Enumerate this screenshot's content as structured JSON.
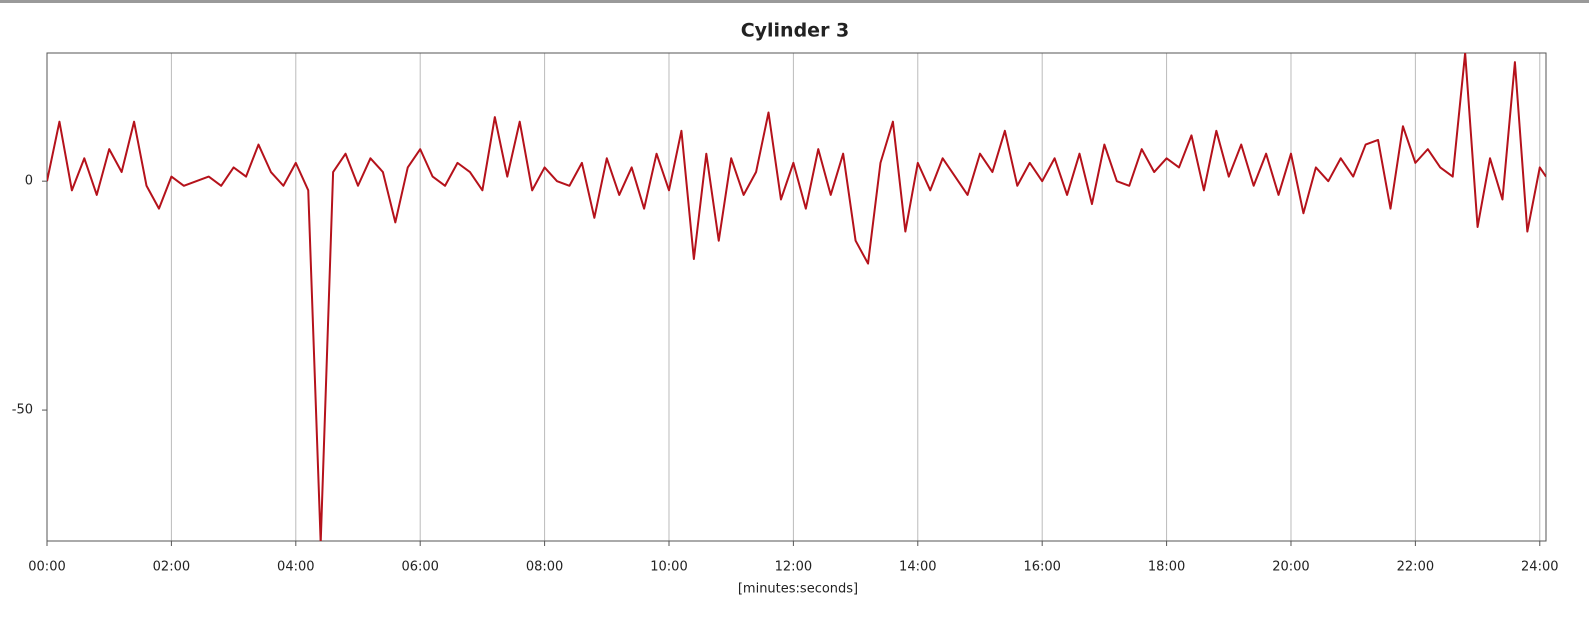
{
  "chart_data": {
    "type": "line",
    "title": "Cylinder 3",
    "x_label": "[minutes:seconds]",
    "x": [
      0,
      12,
      24,
      36,
      48,
      60,
      72,
      84,
      96,
      108,
      120,
      132,
      144,
      156,
      168,
      180,
      192,
      204,
      216,
      228,
      240,
      252,
      264,
      276,
      288,
      300,
      312,
      324,
      336,
      348,
      360,
      372,
      384,
      396,
      408,
      420,
      432,
      444,
      456,
      468,
      480,
      492,
      504,
      516,
      528,
      540,
      552,
      564,
      576,
      588,
      600,
      612,
      624,
      636,
      648,
      660,
      672,
      684,
      696,
      708,
      720,
      732,
      744,
      756,
      768,
      780,
      792,
      804,
      816,
      828,
      840,
      852,
      864,
      876,
      888,
      900,
      912,
      924,
      936,
      948,
      960,
      972,
      984,
      996,
      1008,
      1020,
      1032,
      1044,
      1056,
      1068,
      1080,
      1092,
      1104,
      1116,
      1128,
      1140,
      1152,
      1164,
      1176,
      1188,
      1200,
      1212,
      1224,
      1236,
      1248,
      1260,
      1272,
      1284,
      1296,
      1308,
      1320,
      1332,
      1344,
      1356,
      1368,
      1380,
      1392,
      1404,
      1416,
      1428,
      1440,
      1446
    ],
    "values": [
      0,
      13,
      -2,
      5,
      -3,
      7,
      2,
      13,
      -1,
      -6,
      1,
      -1,
      0,
      1,
      -1,
      3,
      1,
      8,
      2,
      -1,
      4,
      -2,
      -79,
      2,
      6,
      -1,
      5,
      2,
      -9,
      3,
      7,
      1,
      -1,
      4,
      2,
      -2,
      14,
      1,
      13,
      -2,
      3,
      0,
      -1,
      4,
      -8,
      5,
      -3,
      3,
      -6,
      6,
      -2,
      11,
      -17,
      6,
      -13,
      5,
      -3,
      2,
      15,
      -4,
      4,
      -6,
      7,
      -3,
      6,
      -13,
      -18,
      4,
      13,
      -11,
      4,
      -2,
      5,
      1,
      -3,
      6,
      2,
      11,
      -1,
      4,
      0,
      5,
      -3,
      6,
      -5,
      8,
      0,
      -1,
      7,
      2,
      5,
      3,
      10,
      -2,
      11,
      1,
      8,
      -1,
      6,
      -3,
      6,
      -7,
      3,
      0,
      5,
      1,
      8,
      9,
      -6,
      12,
      4,
      7,
      3,
      1,
      28,
      -10,
      5,
      -4,
      26,
      -11,
      3,
      1
    ],
    "color": "#b5121b",
    "xlim": [
      0,
      1446
    ],
    "ylim": [
      -78.6,
      28
    ],
    "xticks": [
      {
        "value": 0,
        "label": "00:00"
      },
      {
        "value": 120,
        "label": "02:00"
      },
      {
        "value": 240,
        "label": "04:00"
      },
      {
        "value": 360,
        "label": "06:00"
      },
      {
        "value": 480,
        "label": "08:00"
      },
      {
        "value": 600,
        "label": "10:00"
      },
      {
        "value": 720,
        "label": "12:00"
      },
      {
        "value": 840,
        "label": "14:00"
      },
      {
        "value": 960,
        "label": "16:00"
      },
      {
        "value": 1080,
        "label": "18:00"
      },
      {
        "value": 1200,
        "label": "20:00"
      },
      {
        "value": 1320,
        "label": "22:00"
      },
      {
        "value": 1440,
        "label": "24:00"
      }
    ],
    "yticks": [
      -50,
      0
    ],
    "grid": true
  }
}
